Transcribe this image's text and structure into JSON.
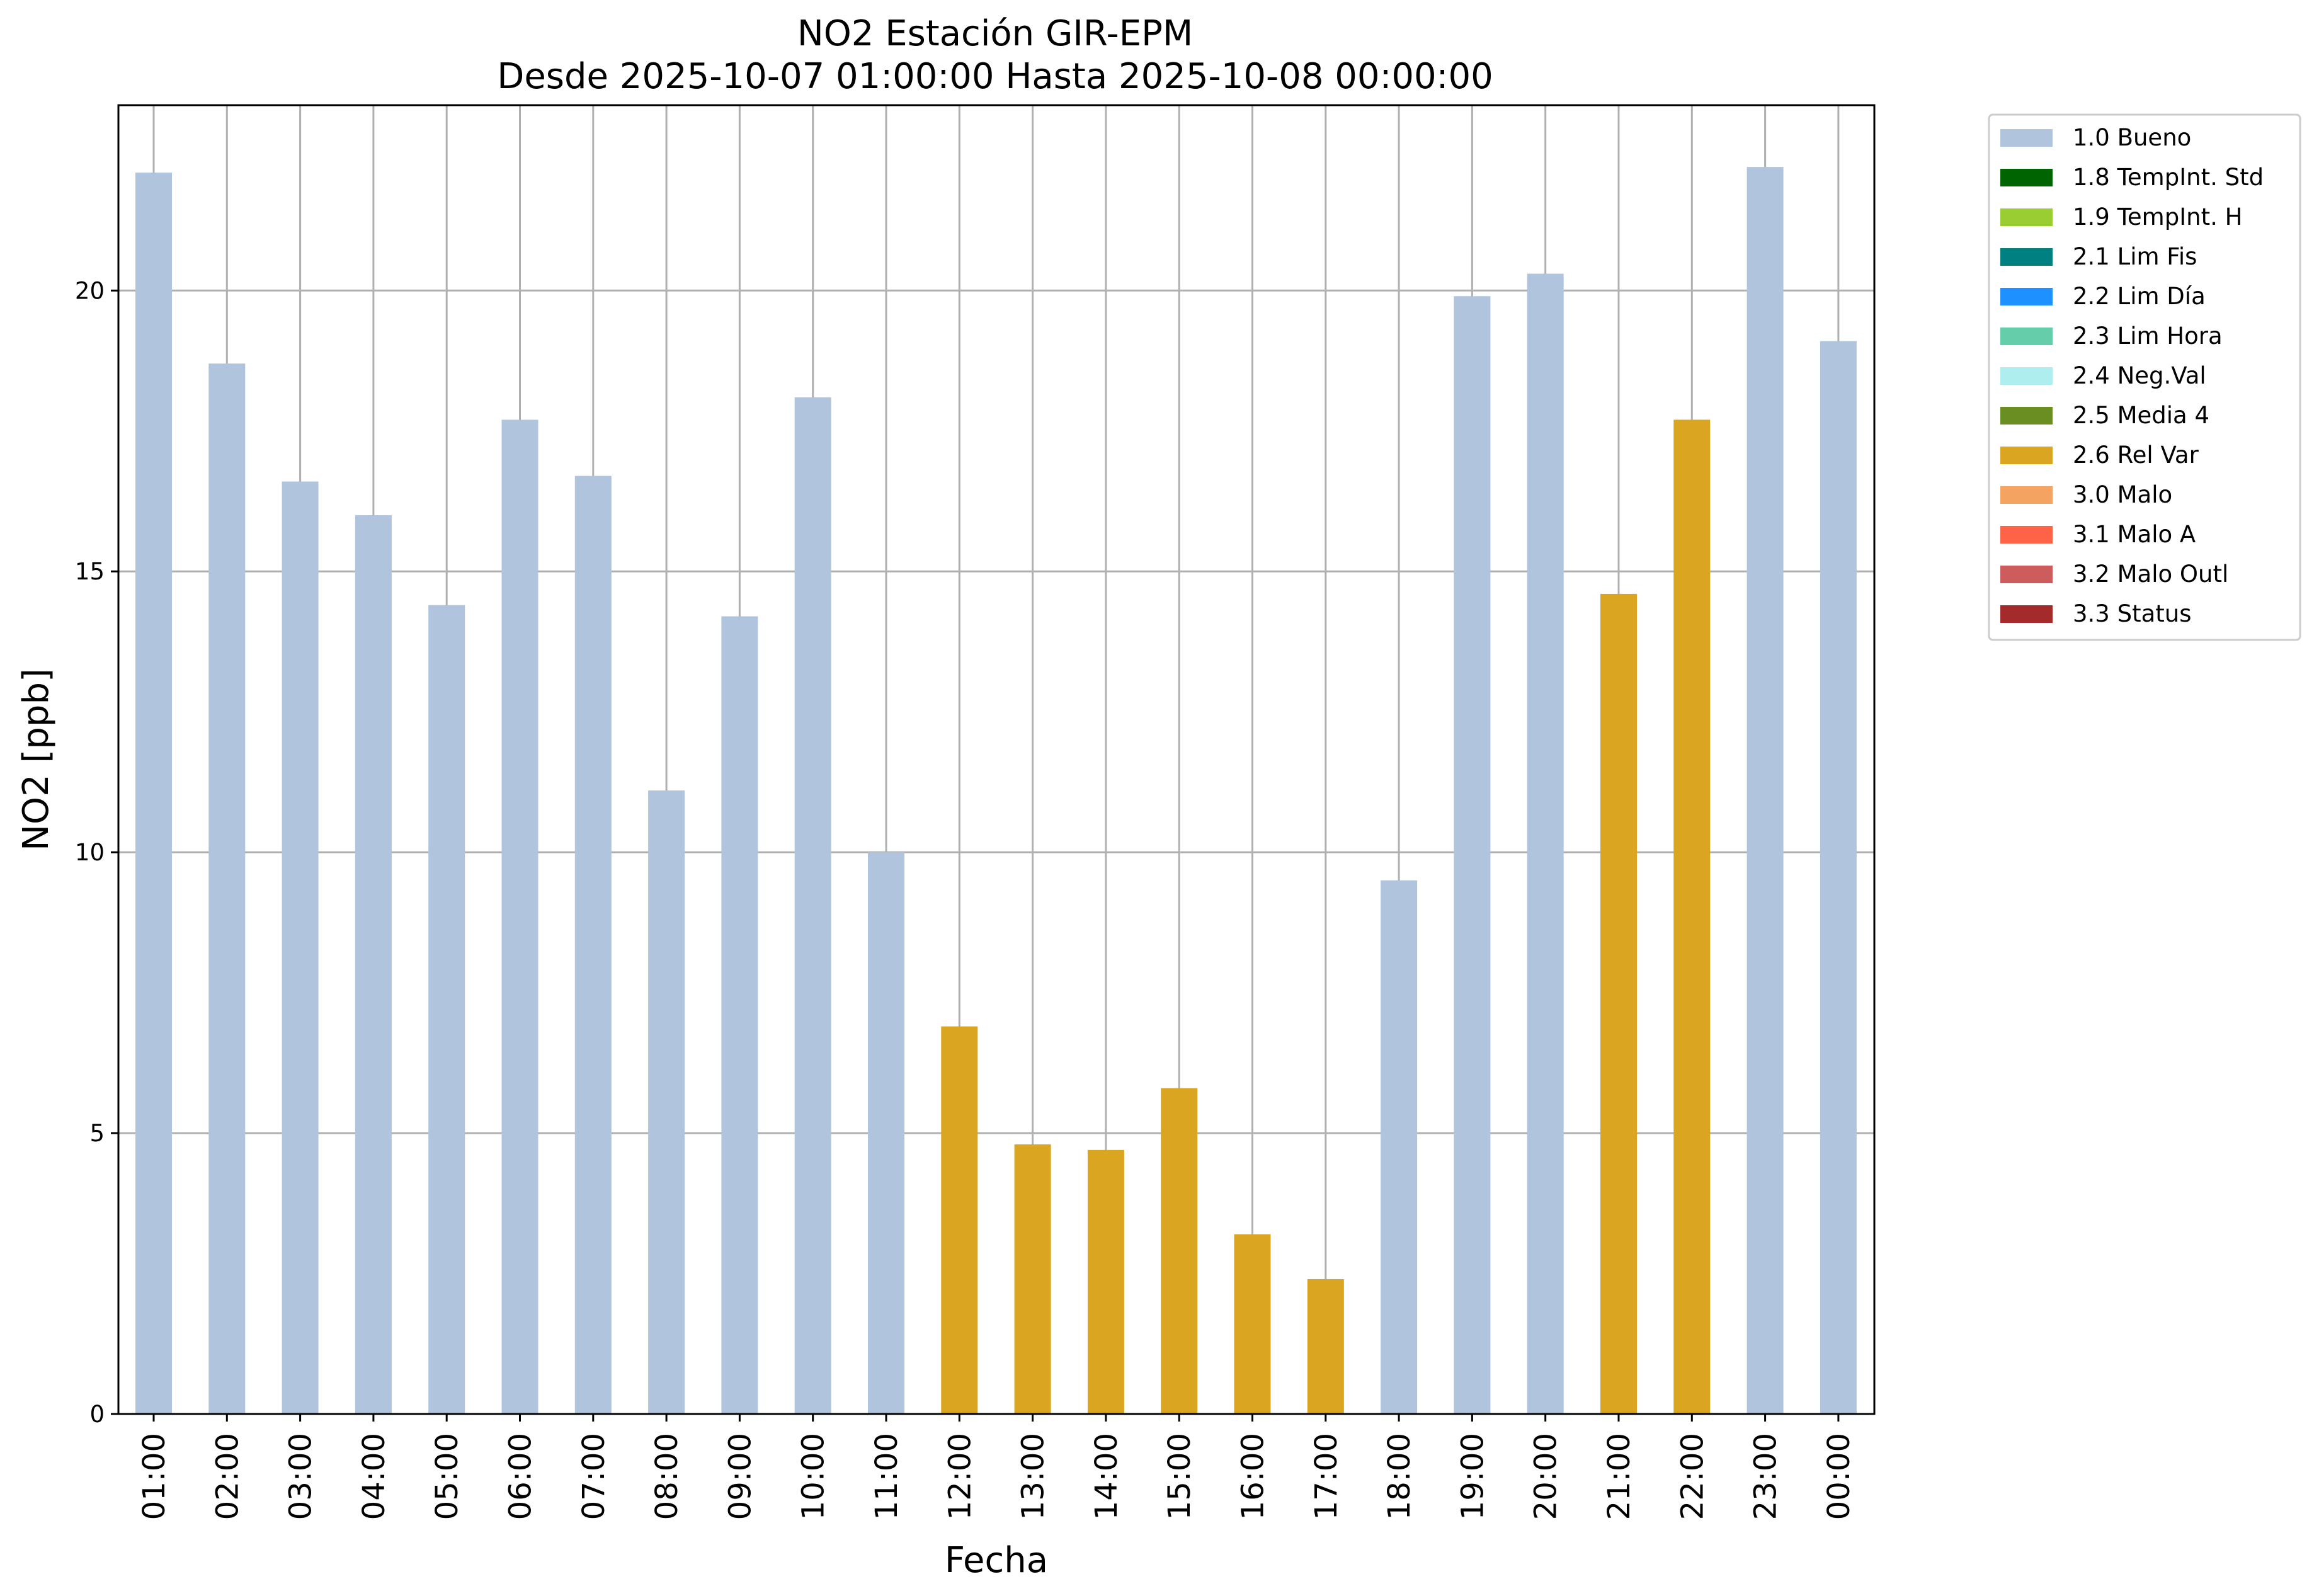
{
  "chart_data": {
    "type": "bar",
    "title": "NO2 Estación GIR-EPM",
    "subtitle": "Desde 2025-10-07 01:00:00 Hasta 2025-10-08 00:00:00",
    "xlabel": "Fecha",
    "ylabel": "NO2 [ppb]",
    "ylim": [
      0,
      23.3
    ],
    "yticks": [
      "0",
      "5",
      "10",
      "15",
      "20"
    ],
    "grid": true,
    "legend_position": "outside-top-right",
    "categories": [
      "01:00",
      "02:00",
      "03:00",
      "04:00",
      "05:00",
      "06:00",
      "07:00",
      "08:00",
      "09:00",
      "10:00",
      "11:00",
      "12:00",
      "13:00",
      "14:00",
      "15:00",
      "16:00",
      "17:00",
      "18:00",
      "19:00",
      "20:00",
      "21:00",
      "22:00",
      "23:00",
      "00:00"
    ],
    "values": [
      22.1,
      18.7,
      16.6,
      16.0,
      14.4,
      17.7,
      16.7,
      11.1,
      14.2,
      18.1,
      10.0,
      6.9,
      4.8,
      4.7,
      5.8,
      3.2,
      2.4,
      9.5,
      19.9,
      20.3,
      14.6,
      17.7,
      22.2,
      19.1
    ],
    "flags": [
      "1.0 Bueno",
      "1.0 Bueno",
      "1.0 Bueno",
      "1.0 Bueno",
      "1.0 Bueno",
      "1.0 Bueno",
      "1.0 Bueno",
      "1.0 Bueno",
      "1.0 Bueno",
      "1.0 Bueno",
      "1.0 Bueno",
      "2.6 Rel Var",
      "2.6 Rel Var",
      "2.6 Rel Var",
      "2.6 Rel Var",
      "2.6 Rel Var",
      "2.6 Rel Var",
      "1.0 Bueno",
      "1.0 Bueno",
      "1.0 Bueno",
      "2.6 Rel Var",
      "2.6 Rel Var",
      "1.0 Bueno",
      "1.0 Bueno"
    ],
    "legend": [
      {
        "label": "1.0 Bueno",
        "color": "#b0c4de"
      },
      {
        "label": "1.8 TempInt. Std",
        "color": "#006400"
      },
      {
        "label": "1.9 TempInt. H",
        "color": "#9acd32"
      },
      {
        "label": "2.1 Lim Fis",
        "color": "#008080"
      },
      {
        "label": "2.2 Lim Día",
        "color": "#1e90ff"
      },
      {
        "label": "2.3 Lim Hora",
        "color": "#66cdaa"
      },
      {
        "label": "2.4 Neg.Val",
        "color": "#afeeee"
      },
      {
        "label": "2.5 Media 4",
        "color": "#6b8e23"
      },
      {
        "label": "2.6 Rel Var",
        "color": "#daa520"
      },
      {
        "label": "3.0 Malo",
        "color": "#f4a460"
      },
      {
        "label": "3.1 Malo A",
        "color": "#ff6347"
      },
      {
        "label": "3.2 Malo Outl",
        "color": "#cd5c5c"
      },
      {
        "label": "3.3 Status",
        "color": "#a52a2a"
      }
    ]
  }
}
